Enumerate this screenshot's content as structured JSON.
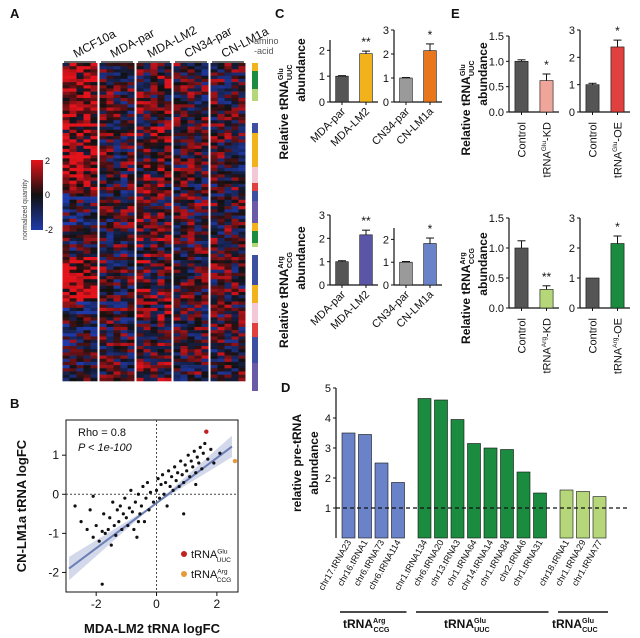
{
  "figure": {
    "panel_letters": [
      "A",
      "B",
      "C",
      "D",
      "E"
    ]
  },
  "colors": {
    "heat_high": "#e3121b",
    "heat_mid": "#111111",
    "heat_low": "#1f3aa8",
    "bar_gray": "#555555",
    "bar_light_gray": "#9a9a9a",
    "yellow": "#f2b21c",
    "orange": "#e8761c",
    "purple": "#5b55a8",
    "light_blue": "#6a82c8",
    "salmon": "#f0a59a",
    "red": "#e0403e",
    "green": "#1b8c3f",
    "dark_green": "#1f7a2e",
    "light_green": "#b5d77a",
    "blue_bar": "#6a82c8",
    "scatter_red": "#c0201e",
    "scatter_orange": "#e89a3a",
    "regression": "#6a7fb5"
  },
  "chart_data": [
    {
      "panel": "A",
      "type": "heatmap",
      "columns": [
        "MCF10a",
        "MDA-par",
        "MDA-LM2",
        "CN34-par",
        "CN-LM1a"
      ],
      "annotation_label": "amino -acid",
      "colorbar": {
        "label": "normalized quantity",
        "ticks": [
          "2",
          "0",
          "-2"
        ],
        "range": [
          -2,
          2
        ]
      },
      "annotation_colors": [
        "#f2b21c",
        "#1b8c3f",
        "#b5d77a",
        "#ffffff",
        "#3d4fa0",
        "#f2b21c",
        "#f2c7d6",
        "#e0403e",
        "#3d4fa0",
        "#6a5aa8"
      ]
    },
    {
      "panel": "B",
      "type": "scatter",
      "xlabel": "MDA-LM2 tRNA logFC",
      "ylabel": "CN-LM1a tRNA logFC",
      "xticks": [
        "-2",
        "0",
        "2"
      ],
      "yticks": [
        "-2",
        "-1",
        "0",
        "1"
      ],
      "xlim": [
        -3.0,
        2.7
      ],
      "ylim": [
        -2.5,
        1.9
      ],
      "annotations": [
        "Rho = 0.8",
        "P < 1e-100"
      ],
      "legend": [
        {
          "label": "tRNA",
          "sup": "Glu",
          "sub": "UUC",
          "color": "#c0201e"
        },
        {
          "label": "tRNA",
          "sup": "Arg",
          "sub": "CCG",
          "color": "#e89a3a"
        }
      ],
      "points": [
        [
          -2.7,
          -0.3
        ],
        [
          -2.5,
          -0.7
        ],
        [
          -2.3,
          -0.9
        ],
        [
          -2.2,
          -0.4
        ],
        [
          -2.1,
          -1.1
        ],
        [
          -2.0,
          -0.8
        ],
        [
          -1.9,
          -1.2
        ],
        [
          -1.8,
          -0.95
        ],
        [
          -1.75,
          -0.5
        ],
        [
          -1.7,
          -1.0
        ],
        [
          -1.6,
          -0.9
        ],
        [
          -1.55,
          -0.6
        ],
        [
          -1.5,
          -1.3
        ],
        [
          -1.45,
          -0.2
        ],
        [
          -1.4,
          -0.8
        ],
        [
          -1.35,
          -1.05
        ],
        [
          -1.3,
          -0.4
        ],
        [
          -1.25,
          -0.7
        ],
        [
          -1.2,
          -0.3
        ],
        [
          -1.15,
          -0.9
        ],
        [
          -1.1,
          -0.5
        ],
        [
          -1.05,
          -0.1
        ],
        [
          -1.0,
          -0.6
        ],
        [
          -0.95,
          -0.8
        ],
        [
          -0.9,
          -0.35
        ],
        [
          -0.85,
          0.1
        ],
        [
          -0.8,
          -0.45
        ],
        [
          -0.75,
          -0.9
        ],
        [
          -0.7,
          -0.2
        ],
        [
          -0.65,
          -1.1
        ],
        [
          -0.6,
          0.0
        ],
        [
          -0.55,
          -0.5
        ],
        [
          -0.5,
          -0.3
        ],
        [
          -0.45,
          0.2
        ],
        [
          -0.4,
          -0.7
        ],
        [
          -0.35,
          -0.1
        ],
        [
          -0.3,
          0.3
        ],
        [
          -0.25,
          -0.4
        ],
        [
          -0.2,
          0.05
        ],
        [
          -0.1,
          -0.2
        ],
        [
          0.0,
          0.1
        ],
        [
          0.05,
          0.4
        ],
        [
          0.1,
          -0.1
        ],
        [
          0.15,
          0.25
        ],
        [
          0.2,
          0.5
        ],
        [
          0.25,
          0.0
        ],
        [
          0.3,
          0.3
        ],
        [
          0.35,
          -0.3
        ],
        [
          0.4,
          0.6
        ],
        [
          0.45,
          0.2
        ],
        [
          0.5,
          0.45
        ],
        [
          0.55,
          0.1
        ],
        [
          0.6,
          0.7
        ],
        [
          0.65,
          0.35
        ],
        [
          0.7,
          0.55
        ],
        [
          0.75,
          0.2
        ],
        [
          0.8,
          0.85
        ],
        [
          0.85,
          0.5
        ],
        [
          0.9,
          0.3
        ],
        [
          0.95,
          0.75
        ],
        [
          1.0,
          0.6
        ],
        [
          1.05,
          1.0
        ],
        [
          1.1,
          0.45
        ],
        [
          1.15,
          0.85
        ],
        [
          1.2,
          0.7
        ],
        [
          1.25,
          1.1
        ],
        [
          1.3,
          0.55
        ],
        [
          1.35,
          0.95
        ],
        [
          1.4,
          0.8
        ],
        [
          1.45,
          1.2
        ],
        [
          1.5,
          0.65
        ],
        [
          1.55,
          1.05
        ],
        [
          1.6,
          1.3
        ],
        [
          1.7,
          0.9
        ],
        [
          1.8,
          1.15
        ],
        [
          1.9,
          0.8
        ],
        [
          -0.6,
          -0.7
        ],
        [
          -1.8,
          -2.3
        ],
        [
          0.9,
          -0.5
        ],
        [
          -2.1,
          -0.05
        ],
        [
          2.1,
          1.05
        ],
        [
          1.3,
          0.25
        ]
      ],
      "highlight_points": [
        {
          "x": 1.65,
          "y": 1.6,
          "series": "Glu UUC"
        },
        {
          "x": 2.6,
          "y": 0.85,
          "series": "Arg CCG"
        }
      ]
    },
    {
      "panel": "C",
      "type": "bar",
      "ylabel_top": "Relative tRNA^Glu_UUC abundance",
      "ylabel_bottom": "Relative tRNA^Arg_CCG abundance",
      "subplots": [
        {
          "categories": [
            "MDA-par",
            "MDA-LM2"
          ],
          "values": [
            1.0,
            1.87
          ],
          "errors": [
            0.02,
            0.1
          ],
          "sig": [
            "",
            "**"
          ],
          "colors": [
            "#555555",
            "#f2b21c"
          ],
          "yticks": [
            "0",
            "1",
            "2"
          ],
          "ylim": [
            0,
            2.4
          ]
        },
        {
          "categories": [
            "CN34-par",
            "CN-LM1a"
          ],
          "values": [
            1.0,
            2.14
          ],
          "errors": [
            0.02,
            0.28
          ],
          "sig": [
            "",
            "*"
          ],
          "colors": [
            "#9a9a9a",
            "#e8761c"
          ],
          "yticks": [
            "0",
            "1",
            "2",
            "3"
          ],
          "ylim": [
            0,
            3.0
          ]
        },
        {
          "categories": [
            "MDA-par",
            "MDA-LM2"
          ],
          "values": [
            1.0,
            2.15
          ],
          "errors": [
            0.04,
            0.2
          ],
          "sig": [
            "",
            "**"
          ],
          "colors": [
            "#555555",
            "#5b55a8"
          ],
          "yticks": [
            "0",
            "1",
            "2",
            "3"
          ],
          "ylim": [
            0,
            3.0
          ]
        },
        {
          "categories": [
            "CN34-par",
            "CN-LM1a"
          ],
          "values": [
            1.0,
            1.82
          ],
          "errors": [
            0.03,
            0.24
          ],
          "sig": [
            "",
            "*"
          ],
          "colors": [
            "#9a9a9a",
            "#6a82c8"
          ],
          "yticks": [
            "0",
            "1",
            "2"
          ],
          "ylim": [
            0,
            2.5
          ]
        }
      ]
    },
    {
      "panel": "E",
      "type": "bar",
      "ylabel_top": "Relative tRNA^Glu_UUC abundance",
      "ylabel_bottom": "Relative tRNA^Arg_CCG abundance",
      "subplots": [
        {
          "categories": [
            "Control",
            "tRNA Glu-KD"
          ],
          "values": [
            1.0,
            0.62
          ],
          "errors": [
            0.03,
            0.13
          ],
          "sig": [
            "",
            "*"
          ],
          "colors": [
            "#555555",
            "#f0a59a"
          ],
          "yticks": [
            "0.0",
            "0.5",
            "1.0",
            "1.5"
          ],
          "ylim": [
            0,
            1.5
          ]
        },
        {
          "categories": [
            "Control",
            "tRNA Glu-OE"
          ],
          "values": [
            1.0,
            2.38
          ],
          "errors": [
            0.05,
            0.25
          ],
          "sig": [
            "",
            "*"
          ],
          "colors": [
            "#555555",
            "#e0403e"
          ],
          "yticks": [
            "0",
            "1",
            "2",
            "3"
          ],
          "ylim": [
            0,
            3.0
          ]
        },
        {
          "categories": [
            "Control",
            "tRNA Arg-KD"
          ],
          "values": [
            1.0,
            0.31
          ],
          "errors": [
            0.12,
            0.06
          ],
          "sig": [
            "",
            "**"
          ],
          "colors": [
            "#555555",
            "#b5d77a"
          ],
          "yticks": [
            "0.0",
            "0.5",
            "1.0",
            "1.5"
          ],
          "ylim": [
            0,
            1.5
          ]
        },
        {
          "categories": [
            "Control",
            "tRNA Arg-OE"
          ],
          "values": [
            1.0,
            2.15
          ],
          "errors": [
            0.0,
            0.25
          ],
          "sig": [
            "",
            "*"
          ],
          "colors": [
            "#555555",
            "#1b8c3f"
          ],
          "yticks": [
            "0",
            "1",
            "2",
            "3"
          ],
          "ylim": [
            0,
            3.0
          ]
        }
      ],
      "xlabels": [
        {
          "main": "Control"
        },
        {
          "main": "tRNA",
          "sup": "Glu",
          "rest": "-KD"
        },
        {
          "main": "Control"
        },
        {
          "main": "tRNA",
          "sup": "Glu",
          "rest": "-OE"
        },
        {
          "main": "Control"
        },
        {
          "main": "tRNA",
          "sup": "Arg",
          "rest": "-KD"
        },
        {
          "main": "Control"
        },
        {
          "main": "tRNA",
          "sup": "Arg",
          "rest": "-OE"
        }
      ]
    },
    {
      "panel": "D",
      "type": "bar",
      "ylabel": "relative pre-tRNA abundance",
      "yticks": [
        "1",
        "2",
        "3",
        "4",
        "5"
      ],
      "ylim": [
        0,
        5
      ],
      "categories": [
        "chr17.tRNA23",
        "chr16.tRNA1",
        "chr6.tRNA73",
        "chr6.tRNA114",
        "chr1.tRNA134",
        "chr6.tRNA20",
        "chr13.tRNA3",
        "chr1.tRNA64",
        "chr14.tRNA14",
        "chr1.tRNA84",
        "chr2.tRNA6",
        "chr1.tRNA31",
        "chr18.tRNA1",
        "chr1.tRNA29",
        "chr1.tRNA77"
      ],
      "values": [
        3.5,
        3.45,
        2.5,
        1.85,
        4.65,
        4.6,
        3.95,
        3.15,
        3.0,
        2.95,
        2.2,
        1.5,
        1.6,
        1.55,
        1.38
      ],
      "groups": [
        {
          "name": "tRNA",
          "sup": "Arg",
          "sub": "CCG",
          "count": 4,
          "color": "#6a82c8"
        },
        {
          "name": "tRNA",
          "sup": "Glu",
          "sub": "UUC",
          "count": 8,
          "color": "#1b8c3f"
        },
        {
          "name": "tRNA",
          "sup": "Glu",
          "sub": "CUC",
          "count": 3,
          "color": "#b5d77a"
        }
      ],
      "reference_line": 1
    }
  ]
}
